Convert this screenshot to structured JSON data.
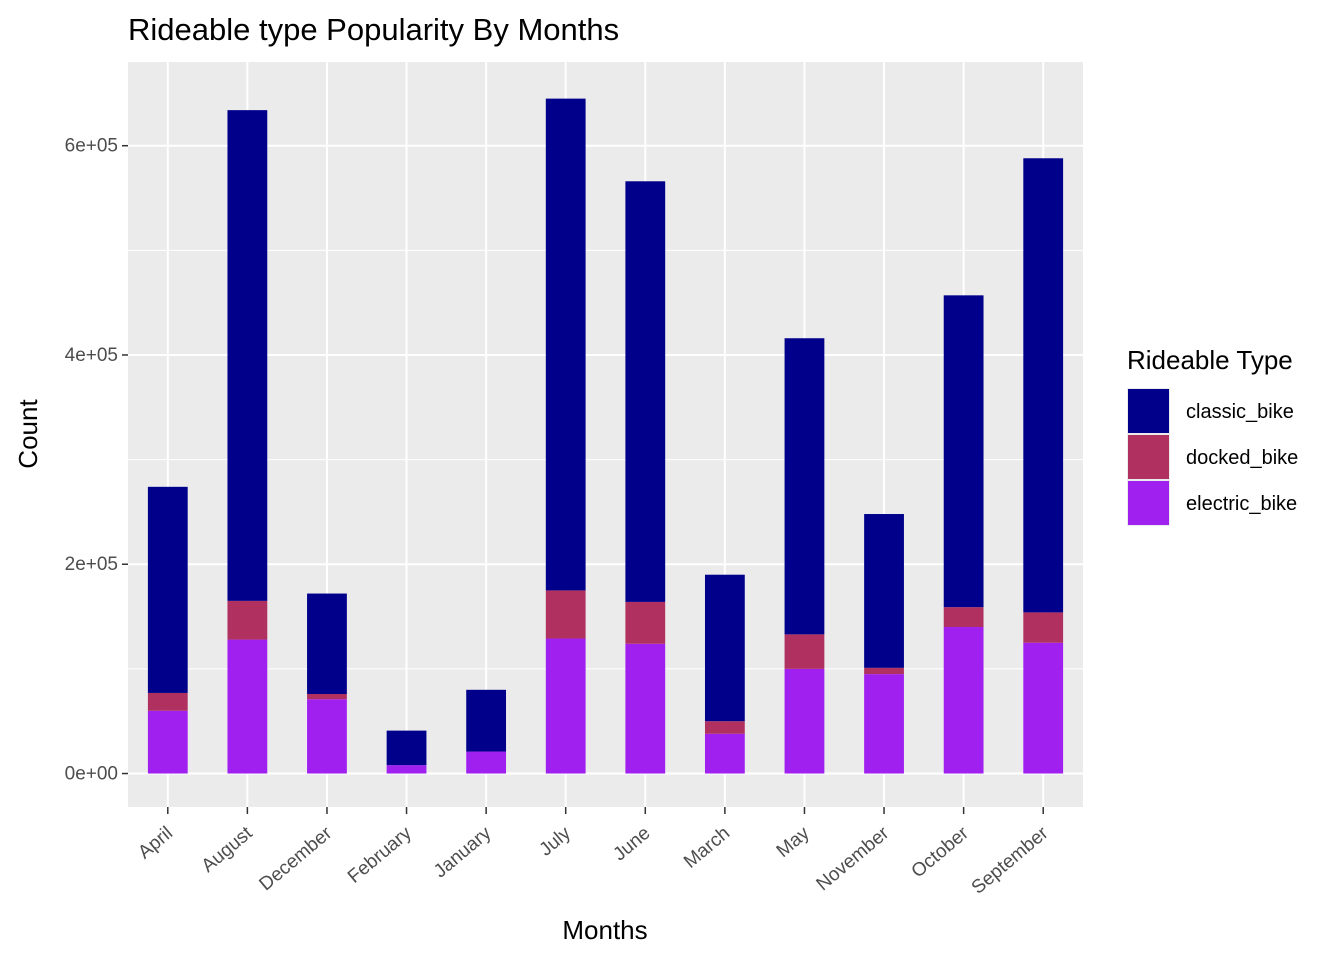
{
  "chart_data": {
    "type": "bar",
    "stacked": true,
    "title": "Rideable type Popularity By Months",
    "xlabel": "Months",
    "ylabel": "Count",
    "ylim": [
      -32000,
      680000
    ],
    "yticks": [
      0,
      200000,
      400000,
      600000
    ],
    "ytick_labels": [
      "0e+00",
      "2e+05",
      "4e+05",
      "6e+05"
    ],
    "grid": true,
    "legend_position": "right",
    "legend_title": "Rideable Type",
    "categories": [
      "April",
      "August",
      "December",
      "February",
      "January",
      "July",
      "June",
      "March",
      "May",
      "November",
      "October",
      "September"
    ],
    "series": [
      {
        "name": "classic_bike",
        "color": "#00008B",
        "values": [
          197000,
          469000,
          96000,
          33000,
          59000,
          470000,
          402000,
          140000,
          283000,
          147000,
          298000,
          434000
        ]
      },
      {
        "name": "docked_bike",
        "color": "#B03060",
        "values": [
          17000,
          37000,
          5000,
          0,
          0,
          46000,
          40000,
          12000,
          33000,
          6000,
          19000,
          29000
        ]
      },
      {
        "name": "electric_bike",
        "color": "#A020F0",
        "values": [
          60000,
          128000,
          71000,
          8000,
          21000,
          129000,
          124000,
          38000,
          100000,
          95000,
          140000,
          125000
        ]
      }
    ]
  }
}
